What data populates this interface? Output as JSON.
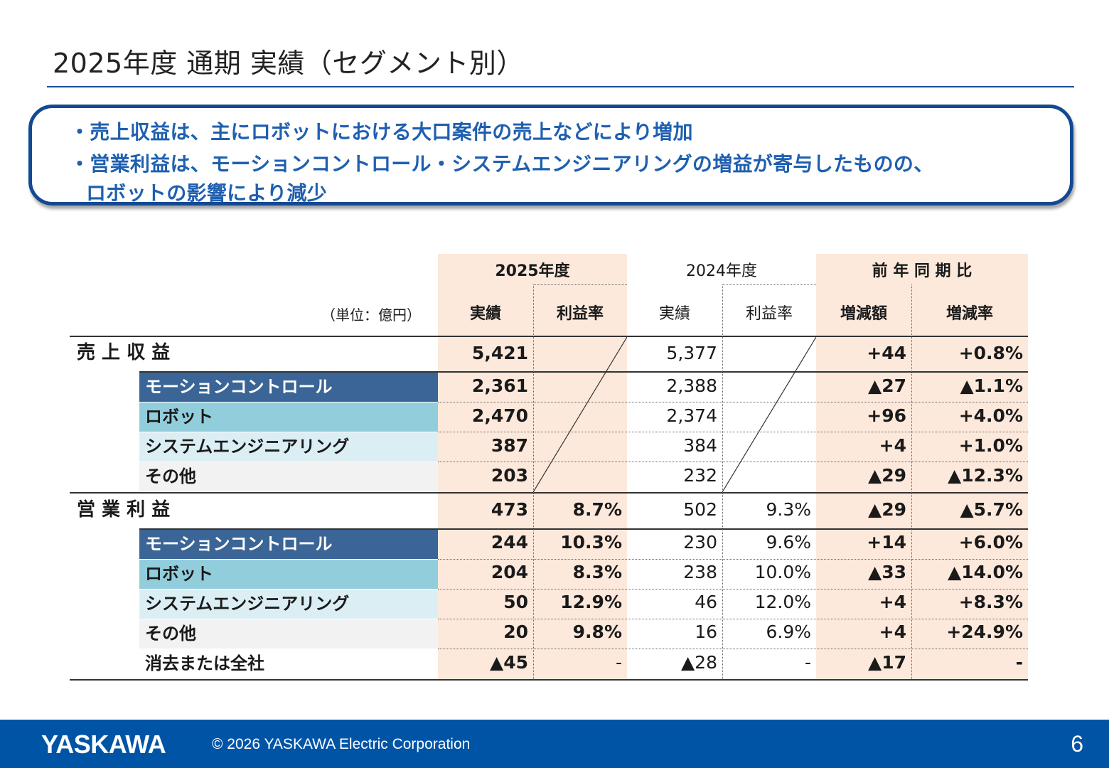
{
  "title": "2025年度 通期 実績（セグメント別）",
  "summary": {
    "line1": "・売上収益は、主にロボットにおける大口案件の売上などにより増加",
    "line2": "・営業利益は、モーションコントロール・システムエンジニアリングの増益が寄与したものの、",
    "line3": "ロボットの影響により減少"
  },
  "table": {
    "unit": "（単位：億円）",
    "group_2025": "2025年度",
    "group_2024": "2024年度",
    "group_yoy": "前 年 同 期 比",
    "col_actual": "実績",
    "col_margin": "利益率",
    "col_change_amt": "増減額",
    "col_change_rate": "増減率",
    "revenue": {
      "label": "売 上 収 益",
      "total": [
        "5,421",
        "5,377",
        "+44",
        "+0.8%"
      ],
      "rows": [
        {
          "label": "モーションコントロール",
          "v": [
            "2,361",
            "2,388",
            "▲27",
            "▲1.1%"
          ]
        },
        {
          "label": "ロボット",
          "v": [
            "2,470",
            "2,374",
            "+96",
            "+4.0%"
          ]
        },
        {
          "label": "システムエンジニアリング",
          "v": [
            "387",
            "384",
            "+4",
            "+1.0%"
          ]
        },
        {
          "label": "その他",
          "v": [
            "203",
            "232",
            "▲29",
            "▲12.3%"
          ]
        }
      ]
    },
    "profit": {
      "label": "営 業 利 益",
      "total": [
        "473",
        "8.7%",
        "502",
        "9.3%",
        "▲29",
        "▲5.7%"
      ],
      "rows": [
        {
          "label": "モーションコントロール",
          "v": [
            "244",
            "10.3%",
            "230",
            "9.6%",
            "+14",
            "+6.0%"
          ]
        },
        {
          "label": "ロボット",
          "v": [
            "204",
            "8.3%",
            "238",
            "10.0%",
            "▲33",
            "▲14.0%"
          ]
        },
        {
          "label": "システムエンジニアリング",
          "v": [
            "50",
            "12.9%",
            "46",
            "12.0%",
            "+4",
            "+8.3%"
          ]
        },
        {
          "label": "その他",
          "v": [
            "20",
            "9.8%",
            "16",
            "6.9%",
            "+4",
            "+24.9%"
          ]
        },
        {
          "label": "消去または全社",
          "v": [
            "▲45",
            "-",
            "▲28",
            "-",
            "▲17",
            "-"
          ]
        }
      ]
    }
  },
  "colors": {
    "accent": "#0054a6",
    "highlight_bg": "#fde9dc",
    "segment_motion": "#3b6596",
    "segment_robot": "#92cddc",
    "segment_system": "#dbeef4",
    "segment_other": "#f2f2f2"
  },
  "footer": {
    "logo": "YASKAWA",
    "copyright": "© 2026 YASKAWA Electric Corporation",
    "page": "6"
  }
}
